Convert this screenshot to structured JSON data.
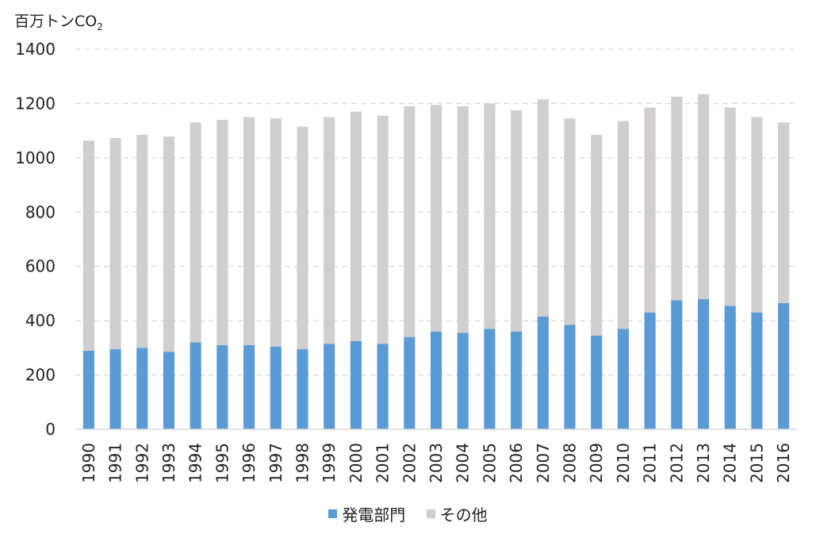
{
  "chart_data": {
    "type": "bar",
    "stacked": true,
    "unit_label": {
      "main": "百万トンCO",
      "sub": "2"
    },
    "categories": [
      "1990",
      "1991",
      "1992",
      "1993",
      "1994",
      "1995",
      "1996",
      "1997",
      "1998",
      "1999",
      "2000",
      "2001",
      "2002",
      "2003",
      "2004",
      "2005",
      "2006",
      "2007",
      "2008",
      "2009",
      "2010",
      "2011",
      "2012",
      "2013",
      "2014",
      "2015",
      "2016"
    ],
    "series": [
      {
        "name": "発電部門",
        "color": "#5b9bd5",
        "values": [
          290,
          295,
          300,
          285,
          320,
          310,
          310,
          305,
          295,
          315,
          325,
          315,
          340,
          360,
          355,
          370,
          360,
          415,
          385,
          345,
          370,
          430,
          475,
          480,
          455,
          430,
          465
        ]
      },
      {
        "name": "その他",
        "color": "#d0cece",
        "values": [
          773,
          778,
          785,
          793,
          810,
          830,
          840,
          840,
          820,
          835,
          845,
          840,
          850,
          835,
          835,
          830,
          815,
          800,
          760,
          740,
          765,
          755,
          750,
          755,
          730,
          720,
          665
        ]
      }
    ],
    "ylim": [
      0,
      1400
    ],
    "yticks": [
      0,
      200,
      400,
      600,
      800,
      1000,
      1200,
      1400
    ],
    "grid": true,
    "legend_position": "bottom"
  }
}
